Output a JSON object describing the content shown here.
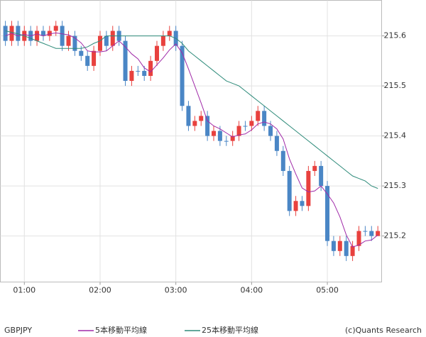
{
  "chart_data": {
    "type": "candlestick",
    "symbol": "GBPJPY",
    "credit": "(c)Quants Research",
    "x": [
      45,
      50,
      55,
      60,
      65,
      70,
      75,
      80,
      85,
      90,
      95,
      100,
      105,
      110,
      115,
      120,
      125,
      130,
      135,
      140,
      145,
      150,
      155,
      160,
      165,
      170,
      175,
      180,
      185,
      190,
      195,
      200,
      205,
      210,
      215,
      220,
      225,
      230,
      235,
      240,
      245,
      250,
      255,
      260,
      265,
      270,
      275,
      280,
      285,
      290,
      295,
      300,
      305,
      310,
      315,
      320,
      325,
      330,
      335,
      340
    ],
    "open": [
      215.62,
      215.59,
      215.62,
      215.59,
      215.61,
      215.59,
      215.61,
      215.6,
      215.61,
      215.62,
      215.58,
      215.6,
      215.57,
      215.56,
      215.54,
      215.57,
      215.6,
      215.58,
      215.61,
      215.59,
      215.51,
      215.53,
      215.53,
      215.52,
      215.55,
      215.58,
      215.6,
      215.61,
      215.58,
      215.46,
      215.42,
      215.43,
      215.44,
      215.4,
      215.41,
      215.39,
      215.39,
      215.4,
      215.42,
      215.42,
      215.43,
      215.45,
      215.42,
      215.4,
      215.37,
      215.33,
      215.25,
      215.27,
      215.26,
      215.33,
      215.34,
      215.3,
      215.19,
      215.17,
      215.19,
      215.16,
      215.18,
      215.21,
      215.21,
      215.2
    ],
    "high": [
      215.63,
      215.63,
      215.63,
      215.62,
      215.62,
      215.62,
      215.62,
      215.62,
      215.63,
      215.63,
      215.61,
      215.61,
      215.58,
      215.57,
      215.58,
      215.61,
      215.61,
      215.62,
      215.62,
      215.6,
      215.54,
      215.54,
      215.54,
      215.56,
      215.59,
      215.61,
      215.62,
      215.62,
      215.59,
      215.47,
      215.44,
      215.45,
      215.45,
      215.42,
      215.42,
      215.4,
      215.41,
      215.43,
      215.43,
      215.44,
      215.46,
      215.46,
      215.43,
      215.41,
      215.38,
      215.34,
      215.28,
      215.28,
      215.34,
      215.35,
      215.35,
      215.31,
      215.2,
      215.2,
      215.2,
      215.19,
      215.22,
      215.22,
      215.22,
      215.22
    ],
    "low": [
      215.58,
      215.58,
      215.58,
      215.58,
      215.58,
      215.58,
      215.59,
      215.59,
      215.6,
      215.57,
      215.57,
      215.56,
      215.55,
      215.53,
      215.53,
      215.56,
      215.57,
      215.57,
      215.58,
      215.5,
      215.5,
      215.52,
      215.51,
      215.51,
      215.54,
      215.57,
      215.59,
      215.57,
      215.45,
      215.41,
      215.41,
      215.42,
      215.39,
      215.39,
      215.38,
      215.38,
      215.38,
      215.39,
      215.41,
      215.41,
      215.42,
      215.41,
      215.39,
      215.36,
      215.32,
      215.24,
      215.24,
      215.25,
      215.25,
      215.32,
      215.29,
      215.18,
      215.16,
      215.16,
      215.15,
      215.15,
      215.17,
      215.2,
      215.19,
      215.2
    ],
    "close": [
      215.59,
      215.62,
      215.59,
      215.61,
      215.59,
      215.61,
      215.6,
      215.61,
      215.62,
      215.58,
      215.6,
      215.57,
      215.56,
      215.54,
      215.57,
      215.6,
      215.58,
      215.61,
      215.59,
      215.51,
      215.53,
      215.53,
      215.52,
      215.55,
      215.58,
      215.6,
      215.61,
      215.58,
      215.46,
      215.42,
      215.43,
      215.44,
      215.4,
      215.41,
      215.39,
      215.39,
      215.4,
      215.42,
      215.42,
      215.43,
      215.45,
      215.42,
      215.4,
      215.37,
      215.33,
      215.25,
      215.27,
      215.26,
      215.33,
      215.34,
      215.3,
      215.19,
      215.17,
      215.19,
      215.16,
      215.18,
      215.21,
      215.21,
      215.2,
      215.21
    ],
    "up_color": "#e8413e",
    "down_color": "#4a86c5",
    "series": [
      {
        "name": "5本移動平均線",
        "color": "#a02aa8",
        "values": [
          215.6,
          215.605,
          215.6,
          215.603,
          215.6,
          215.604,
          215.6,
          215.604,
          215.606,
          215.604,
          215.602,
          215.596,
          215.586,
          215.57,
          215.568,
          215.568,
          215.57,
          215.58,
          215.59,
          215.578,
          215.564,
          215.554,
          215.536,
          215.528,
          215.542,
          215.556,
          215.572,
          215.584,
          215.566,
          215.534,
          215.5,
          215.466,
          215.43,
          215.42,
          215.414,
          215.406,
          215.398,
          215.402,
          215.404,
          215.412,
          215.424,
          215.428,
          215.424,
          215.414,
          215.394,
          215.354,
          215.324,
          215.296,
          215.288,
          215.29,
          215.3,
          215.284,
          215.266,
          215.238,
          215.202,
          215.178,
          215.182,
          215.19,
          215.192,
          215.202
        ]
      },
      {
        "name": "25本移動平均線",
        "color": "#2e8b7a",
        "values": [
          215.61,
          215.607,
          215.604,
          215.6,
          215.595,
          215.59,
          215.585,
          215.58,
          215.575,
          215.575,
          215.575,
          215.575,
          215.575,
          215.578,
          215.585,
          215.59,
          215.6,
          215.6,
          215.6,
          215.6,
          215.6,
          215.6,
          215.6,
          215.6,
          215.6,
          215.6,
          215.6,
          215.595,
          215.585,
          215.57,
          215.56,
          215.55,
          215.54,
          215.53,
          215.52,
          215.51,
          215.505,
          215.5,
          215.49,
          215.48,
          215.47,
          215.46,
          215.45,
          215.44,
          215.43,
          215.42,
          215.41,
          215.4,
          215.39,
          215.38,
          215.37,
          215.36,
          215.35,
          215.34,
          215.33,
          215.32,
          215.315,
          215.31,
          215.3,
          215.295
        ]
      }
    ],
    "xlim": [
      41,
      343
    ],
    "xticks": [
      {
        "value": 60,
        "label": "01:00"
      },
      {
        "value": 120,
        "label": "02:00"
      },
      {
        "value": 180,
        "label": "03:00"
      },
      {
        "value": 240,
        "label": "04:00"
      },
      {
        "value": 300,
        "label": "05:00"
      }
    ],
    "ylim": [
      215.108,
      215.671
    ],
    "yticks": [
      215.2,
      215.3,
      215.4,
      215.5,
      215.6
    ],
    "grid": true
  }
}
